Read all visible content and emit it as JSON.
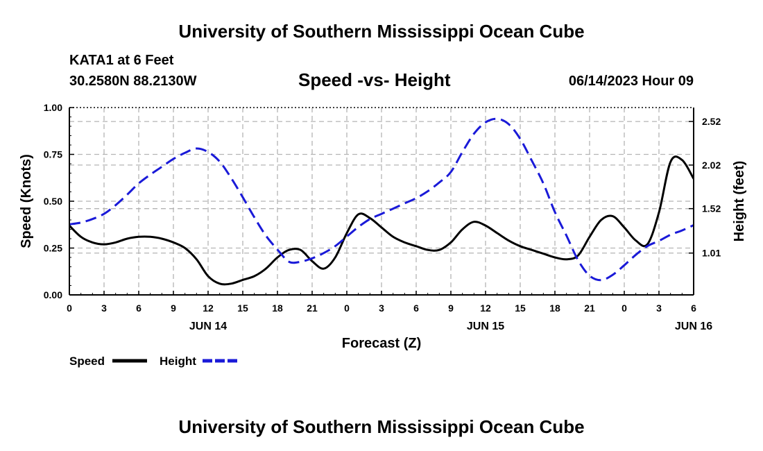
{
  "header": {
    "title": "University of Southern Mississippi Ocean Cube",
    "station": "KATA1 at 6 Feet",
    "coords": "30.2580N  88.2130W",
    "subtitle": "Speed -vs- Height",
    "datetime": "06/14/2023 Hour 09"
  },
  "footer": {
    "title": "University of Southern Mississippi Ocean Cube"
  },
  "chart_data": {
    "type": "line",
    "title": "Speed -vs- Height",
    "xlabel": "Forecast (Z)",
    "ylabel_left": "Speed (Knots)",
    "ylabel_right": "Height (feet)",
    "x_tick_labels": [
      "0",
      "3",
      "6",
      "9",
      "12",
      "15",
      "18",
      "21",
      "0",
      "3",
      "6",
      "9",
      "12",
      "15",
      "18",
      "21",
      "0",
      "3",
      "6"
    ],
    "date_labels": [
      {
        "label": "JUN 14",
        "hour": 12
      },
      {
        "label": "JUN 15",
        "hour": 36
      },
      {
        "label": "JUN 16",
        "hour": 54
      }
    ],
    "xlim": [
      0,
      54
    ],
    "ylim_left": [
      0,
      1.0
    ],
    "left_ticks": [
      "0.00",
      "0.25",
      "0.50",
      "0.75",
      "1.00"
    ],
    "ylim_right": [
      0.53,
      2.68
    ],
    "right_ticks": [
      "1.01",
      "1.52",
      "2.02",
      "2.52"
    ],
    "grid": true,
    "colors": {
      "speed": "#000000",
      "height": "#1a1ad8",
      "grid": "#b4b4b4"
    },
    "series": [
      {
        "name": "Speed",
        "axis": "left",
        "style": "solid",
        "x": [
          0,
          1,
          2,
          3,
          4,
          5,
          6,
          7,
          8,
          9,
          10,
          11,
          12,
          13,
          14,
          15,
          16,
          17,
          18,
          19,
          20,
          21,
          22,
          23,
          24,
          25,
          26,
          27,
          28,
          29,
          30,
          31,
          32,
          33,
          34,
          35,
          36,
          37,
          38,
          39,
          40,
          41,
          42,
          43,
          44,
          45,
          46,
          47,
          48,
          49,
          50,
          51,
          52,
          53,
          54
        ],
        "values": [
          0.37,
          0.31,
          0.28,
          0.27,
          0.28,
          0.3,
          0.31,
          0.31,
          0.3,
          0.28,
          0.25,
          0.19,
          0.1,
          0.06,
          0.06,
          0.08,
          0.1,
          0.14,
          0.2,
          0.24,
          0.24,
          0.18,
          0.14,
          0.2,
          0.33,
          0.43,
          0.41,
          0.36,
          0.31,
          0.28,
          0.26,
          0.24,
          0.24,
          0.28,
          0.35,
          0.39,
          0.37,
          0.33,
          0.29,
          0.26,
          0.24,
          0.22,
          0.2,
          0.19,
          0.21,
          0.31,
          0.4,
          0.42,
          0.36,
          0.29,
          0.27,
          0.44,
          0.71,
          0.72,
          0.62
        ]
      },
      {
        "name": "Height",
        "axis": "right",
        "style": "dashed",
        "x": [
          0,
          1,
          2,
          3,
          4,
          5,
          6,
          7,
          8,
          9,
          10,
          11,
          12,
          13,
          14,
          15,
          16,
          17,
          18,
          19,
          20,
          21,
          22,
          23,
          24,
          25,
          26,
          27,
          28,
          29,
          30,
          31,
          32,
          33,
          34,
          35,
          36,
          37,
          38,
          39,
          40,
          41,
          42,
          43,
          44,
          45,
          46,
          47,
          48,
          49,
          50,
          51,
          52,
          53,
          54
        ],
        "values": [
          1.34,
          1.36,
          1.4,
          1.46,
          1.56,
          1.68,
          1.81,
          1.91,
          2.0,
          2.09,
          2.16,
          2.21,
          2.17,
          2.06,
          1.87,
          1.65,
          1.42,
          1.21,
          1.05,
          0.91,
          0.91,
          0.95,
          1.01,
          1.09,
          1.2,
          1.31,
          1.4,
          1.46,
          1.52,
          1.58,
          1.64,
          1.72,
          1.82,
          1.94,
          2.17,
          2.38,
          2.51,
          2.55,
          2.49,
          2.32,
          2.07,
          1.81,
          1.48,
          1.21,
          0.93,
          0.75,
          0.7,
          0.76,
          0.87,
          0.99,
          1.09,
          1.15,
          1.22,
          1.27,
          1.33
        ]
      }
    ],
    "legend": [
      {
        "label": "Speed",
        "series": "Speed"
      },
      {
        "label": "Height",
        "series": "Height"
      }
    ],
    "legend_position": "bottom-left"
  }
}
